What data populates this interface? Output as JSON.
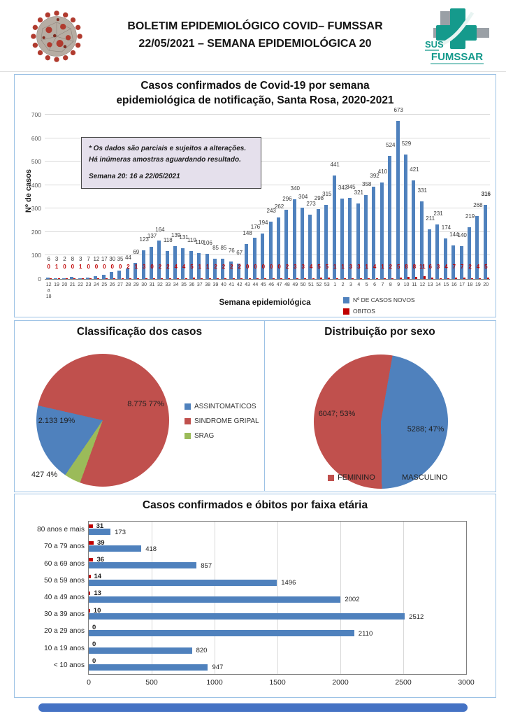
{
  "header": {
    "title_line1": "BOLETIM EPIDEMIOLÓGICO COVID– FUMSSAR",
    "title_line2": "22/05/2021 – SEMANA EPIDEMIOLÓGICA 20",
    "logo_sus": "SUS",
    "logo_name": "FUMSSAR"
  },
  "colors": {
    "cases_blue": "#4F81BD",
    "deaths_red": "#C00000",
    "pie_red": "#C0504D",
    "pie_blue": "#4F81BD",
    "pie_green": "#9BBB59",
    "panel_border": "#9CC2E5",
    "annotation_bg": "#E5E0EC",
    "grid_grey": "#D9D9D9",
    "logo_teal": "#159A8C",
    "logo_grey": "#9AA0A6",
    "bottom_bar": "#4472C4"
  },
  "chart_data": [
    {
      "type": "bar",
      "title_line1": "Casos confirmados de Covid-19 por semana",
      "title_line2": "epidemiológica de notificação, Santa Rosa, 2020-2021",
      "ylabel": "Nº de casos",
      "xlabel": "Semana epidemiológica",
      "ylim": [
        0,
        700
      ],
      "ytick_step": 100,
      "grid": true,
      "legend_position": "bottom-right",
      "annotation_line1": "* Os dados são parciais e sujeitos a alterações. Há inúmeras amostras aguardando resultado.",
      "annotation_line2": "Semana 20: 16 a 22/05/2021",
      "categories": [
        "12\na\n18",
        "19",
        "20",
        "21",
        "22",
        "23",
        "24",
        "25",
        "26",
        "27",
        "28",
        "29",
        "30",
        "31",
        "32",
        "33",
        "34",
        "35",
        "36",
        "37",
        "38",
        "39",
        "40",
        "41",
        "42",
        "43",
        "44",
        "45",
        "46",
        "47",
        "48",
        "49",
        "50",
        "51",
        "52",
        "53",
        "1",
        "2",
        "3",
        "4",
        "5",
        "6",
        "7",
        "8",
        "9",
        "10",
        "11",
        "12",
        "13",
        "14",
        "15",
        "16",
        "17",
        "18",
        "19",
        "20"
      ],
      "series": [
        {
          "name": "Nº DE CASOS NOVOS",
          "color": "#4F81BD",
          "values": [
            6,
            3,
            2,
            8,
            3,
            7,
            12,
            17,
            30,
            35,
            44,
            69,
            123,
            137,
            164,
            118,
            139,
            131,
            119,
            110,
            106,
            85,
            85,
            76,
            67,
            148,
            176,
            194,
            243,
            262,
            296,
            340,
            304,
            273,
            298,
            315,
            441,
            342,
            345,
            321,
            358,
            392,
            410,
            524,
            673,
            529,
            421,
            331,
            211,
            231,
            174,
            144,
            140,
            219,
            268,
            316
          ]
        },
        {
          "name": "OBITOS",
          "color": "#C00000",
          "values": [
            0,
            1,
            0,
            0,
            1,
            0,
            0,
            0,
            0,
            0,
            2,
            1,
            3,
            0,
            2,
            2,
            4,
            4,
            5,
            1,
            1,
            2,
            2,
            2,
            2,
            0,
            0,
            0,
            0,
            0,
            2,
            3,
            3,
            4,
            5,
            5,
            1,
            1,
            3,
            3,
            1,
            4,
            1,
            2,
            5,
            8,
            8,
            11,
            6,
            3,
            4,
            7,
            7,
            2,
            4,
            5
          ]
        }
      ]
    },
    {
      "type": "pie",
      "title": "Classificação dos casos",
      "legend_position": "right",
      "slices": [
        {
          "label": "ASSINTOMATICOS",
          "value": 2133,
          "pct": 19,
          "label_text": "2.133  19%",
          "color": "#4F81BD"
        },
        {
          "label": "SINDROME GRIPAL",
          "value": 8775,
          "pct": 77,
          "label_text": "8.775  77%",
          "color": "#C0504D"
        },
        {
          "label": "SRAG",
          "value": 427,
          "pct": 4,
          "label_text": "427  4%",
          "color": "#9BBB59"
        }
      ]
    },
    {
      "type": "pie",
      "title": "Distribuição por sexo",
      "legend_position": "bottom",
      "slices": [
        {
          "label": "FEMININO",
          "value": 6047,
          "pct": 53,
          "label_text": "6047; 53%",
          "color": "#C0504D"
        },
        {
          "label": "MASCULINO",
          "value": 5288,
          "pct": 47,
          "label_text": "5288; 47%",
          "color": "#4F81BD"
        }
      ]
    },
    {
      "type": "bar",
      "orientation": "horizontal",
      "title": "Casos confirmados e óbitos  por faixa etária",
      "xlim": [
        0,
        3000
      ],
      "xtick_step": 500,
      "grid": true,
      "categories": [
        "80 anos e mais",
        "70 a 79 anos",
        "60 a 69 anos",
        "50 a 59 anos",
        "40 a 49 anos",
        "30 a 39 anos",
        "20 a 29 anos",
        "10 a 19 anos",
        "< 10 anos"
      ],
      "series": [
        {
          "name": "Óbitos",
          "color": "#C00000",
          "values": [
            31,
            39,
            36,
            14,
            13,
            10,
            0,
            0,
            0
          ]
        },
        {
          "name": "Casos confirmados",
          "color": "#4F81BD",
          "values": [
            173,
            418,
            857,
            1496,
            2002,
            2512,
            2110,
            820,
            947
          ]
        }
      ]
    }
  ]
}
